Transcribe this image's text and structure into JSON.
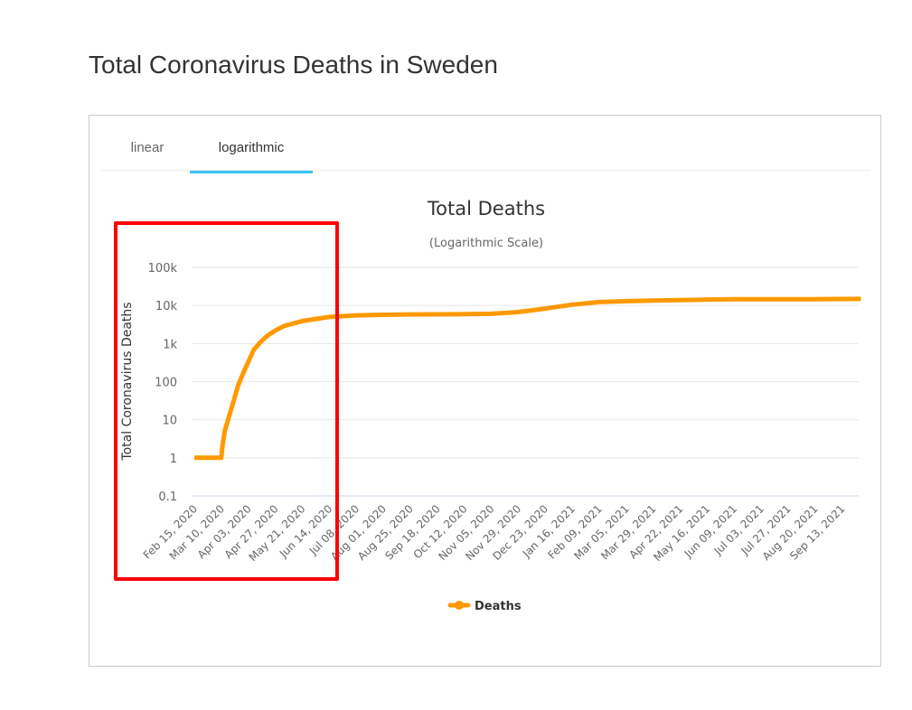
{
  "page": {
    "title": "Total Coronavirus Deaths in Sweden"
  },
  "tabs": [
    {
      "label": "linear",
      "active": false
    },
    {
      "label": "logarithmic",
      "active": true
    }
  ],
  "colors": {
    "series": "#ff9900",
    "tab_active": "#3bc4ef",
    "annotation": "#ff0000",
    "grid": "#e6e6e6"
  },
  "chart_data": {
    "type": "line",
    "title": "Total Deaths",
    "subtitle": "(Logarithmic Scale)",
    "xlabel": "",
    "ylabel": "Total Coronavirus Deaths",
    "y_scale": "log",
    "ylim": [
      0.1,
      100000
    ],
    "y_ticks": [
      0.1,
      1,
      10,
      100,
      1000,
      10000,
      100000
    ],
    "y_tick_labels": [
      "0.1",
      "1",
      "10",
      "100",
      "1k",
      "10k",
      "100k"
    ],
    "grid": true,
    "legend": {
      "position": "bottom-center",
      "entries": [
        "Deaths"
      ]
    },
    "x_tick_labels": [
      "Feb 15, 2020",
      "Mar 10, 2020",
      "Apr 03, 2020",
      "Apr 27, 2020",
      "May 21, 2020",
      "Jun 14, 2020",
      "Jul 08, 2020",
      "Aug 01, 2020",
      "Aug 25, 2020",
      "Sep 18, 2020",
      "Oct 12, 2020",
      "Nov 05, 2020",
      "Nov 29, 2020",
      "Dec 23, 2020",
      "Jan 16, 2021",
      "Feb 09, 2021",
      "Mar 05, 2021",
      "Mar 29, 2021",
      "Apr 22, 2021",
      "May 16, 2021",
      "Jun 09, 2021",
      "Jul 03, 2021",
      "Jul 27, 2021",
      "Aug 20, 2021",
      "Sep 13, 2021"
    ],
    "series": [
      {
        "name": "Deaths",
        "x": [
          "2020-02-15",
          "2020-03-10",
          "2020-03-11",
          "2020-03-13",
          "2020-03-16",
          "2020-03-20",
          "2020-03-25",
          "2020-03-30",
          "2020-04-03",
          "2020-04-08",
          "2020-04-14",
          "2020-04-20",
          "2020-04-27",
          "2020-05-05",
          "2020-05-21",
          "2020-06-14",
          "2020-07-08",
          "2020-08-01",
          "2020-08-25",
          "2020-09-18",
          "2020-10-12",
          "2020-11-05",
          "2020-11-29",
          "2020-12-23",
          "2021-01-16",
          "2021-02-09",
          "2021-03-05",
          "2021-03-29",
          "2021-04-22",
          "2021-05-16",
          "2021-06-09",
          "2021-07-03",
          "2021-07-27",
          "2021-08-20",
          "2021-09-13",
          "2021-09-30"
        ],
        "values": [
          1,
          1,
          2,
          5,
          10,
          25,
          80,
          180,
          330,
          700,
          1100,
          1600,
          2200,
          2900,
          3900,
          5000,
          5500,
          5700,
          5800,
          5860,
          5900,
          6050,
          6700,
          8300,
          10500,
          12300,
          13000,
          13400,
          13800,
          14300,
          14550,
          14600,
          14620,
          14650,
          14800,
          14900
        ]
      }
    ]
  },
  "annotation": {
    "type": "highlight-box",
    "color": "#ff0000"
  }
}
